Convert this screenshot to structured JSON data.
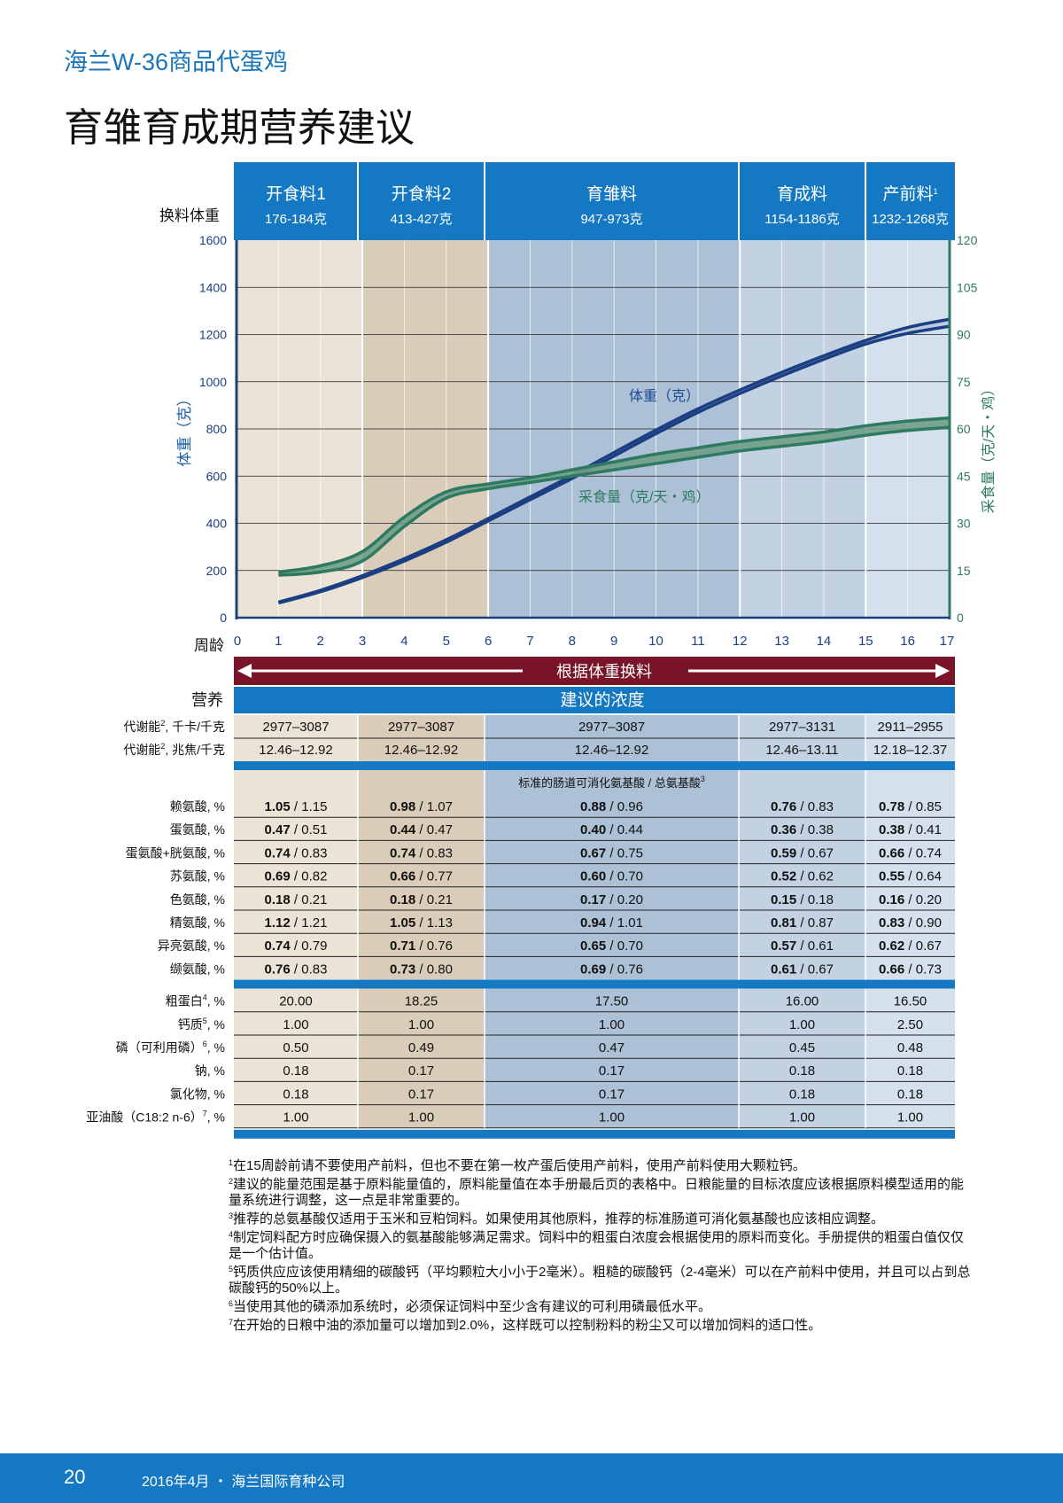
{
  "header": {
    "brand": "海兰W-36商品代蛋鸡",
    "title": "育雏育成期营养建议"
  },
  "phases": [
    {
      "name": "开食料1",
      "sup": "",
      "weight": "176-184克",
      "color": "#ebe3d6"
    },
    {
      "name": "开食料2",
      "sup": "",
      "weight": "413-427克",
      "color": "#d9ccb8"
    },
    {
      "name": "育雏料",
      "sup": "",
      "weight": "947-973克",
      "color": "#adc1d6"
    },
    {
      "name": "育成料",
      "sup": "",
      "weight": "1154-1186克",
      "color": "#c2d2e2"
    },
    {
      "name": "产前料",
      "sup": "1",
      "weight": "1232-1268克",
      "color": "#d4e0ec"
    }
  ],
  "labels": {
    "switch_weight": "换料体重",
    "age": "周龄",
    "nutrition": "营养",
    "banner": "根据体重换料",
    "concentration": "建议的浓度",
    "amino_header": "标准的肠道可消化氨基酸 / 总氨基酸",
    "amino_header_sup": "3"
  },
  "chart_data": {
    "type": "line",
    "xlabel": "周龄",
    "x_ticks": [
      0,
      1,
      2,
      3,
      4,
      5,
      6,
      7,
      8,
      9,
      10,
      11,
      12,
      13,
      14,
      15,
      16,
      17
    ],
    "y_left": {
      "label": "体重（克）",
      "range": [
        0,
        1600
      ],
      "ticks": [
        0,
        200,
        400,
        600,
        800,
        1000,
        1200,
        1400,
        1600
      ]
    },
    "y_right": {
      "label": "采食量（克/天・鸡）",
      "range": [
        0,
        120
      ],
      "ticks": [
        0,
        15,
        30,
        45,
        60,
        75,
        90,
        105,
        120
      ]
    },
    "phase_boundaries_weeks": [
      3,
      6,
      12,
      15
    ],
    "grid": true,
    "series": [
      {
        "name": "体重（克）",
        "axis": "left",
        "color": "#1b3f82",
        "x": [
          1,
          2,
          3,
          4,
          5,
          6,
          7,
          8,
          9,
          10,
          11,
          12,
          13,
          14,
          15,
          16,
          17
        ],
        "low": [
          62,
          110,
          170,
          240,
          320,
          410,
          500,
          590,
          685,
          780,
          870,
          950,
          1025,
          1095,
          1160,
          1205,
          1235
        ],
        "high": [
          66,
          116,
          178,
          250,
          330,
          420,
          512,
          603,
          700,
          795,
          885,
          965,
          1040,
          1110,
          1175,
          1230,
          1265
        ]
      },
      {
        "name": "采食量（克/天・鸡）",
        "axis": "right",
        "color": "#2e7a60",
        "x": [
          1,
          2,
          3,
          4,
          5,
          6,
          7,
          8,
          9,
          10,
          11,
          12,
          13,
          14,
          15,
          16,
          17
        ],
        "low": [
          13.5,
          14.5,
          18,
          29,
          38,
          41,
          43,
          45,
          47,
          49,
          51,
          53,
          54.5,
          56,
          58,
          59.5,
          60.5
        ],
        "high": [
          14.5,
          16.5,
          21,
          32,
          40,
          42.5,
          44.5,
          47,
          49.5,
          52,
          54,
          56,
          57.5,
          59,
          61,
          62.5,
          63.5
        ]
      }
    ]
  },
  "energy_rows": [
    {
      "label": "代谢能",
      "sup": "2",
      "unit": ", 千卡/千克",
      "values": [
        "2977–3087",
        "2977–3087",
        "2977–3087",
        "2977–3131",
        "2911–2955"
      ]
    },
    {
      "label": "代谢能",
      "sup": "2",
      "unit": ", 兆焦/千克",
      "values": [
        "12.46–12.92",
        "12.46–12.92",
        "12.46–12.92",
        "12.46–13.11",
        "12.18–12.37"
      ]
    }
  ],
  "amino_rows": [
    {
      "label": "赖氨酸",
      "sup": "",
      "unit": ", %",
      "values": [
        [
          "1.05",
          "1.15"
        ],
        [
          "0.98",
          "1.07"
        ],
        [
          "0.88",
          "0.96"
        ],
        [
          "0.76",
          "0.83"
        ],
        [
          "0.78",
          "0.85"
        ]
      ]
    },
    {
      "label": "蛋氨酸",
      "sup": "",
      "unit": ", %",
      "values": [
        [
          "0.47",
          "0.51"
        ],
        [
          "0.44",
          "0.47"
        ],
        [
          "0.40",
          "0.44"
        ],
        [
          "0.36",
          "0.38"
        ],
        [
          "0.38",
          "0.41"
        ]
      ]
    },
    {
      "label": "蛋氨酸+胱氨酸",
      "sup": "",
      "unit": ", %",
      "values": [
        [
          "0.74",
          "0.83"
        ],
        [
          "0.74",
          "0.83"
        ],
        [
          "0.67",
          "0.75"
        ],
        [
          "0.59",
          "0.67"
        ],
        [
          "0.66",
          "0.74"
        ]
      ]
    },
    {
      "label": "苏氨酸",
      "sup": "",
      "unit": ", %",
      "values": [
        [
          "0.69",
          "0.82"
        ],
        [
          "0.66",
          "0.77"
        ],
        [
          "0.60",
          "0.70"
        ],
        [
          "0.52",
          "0.62"
        ],
        [
          "0.55",
          "0.64"
        ]
      ]
    },
    {
      "label": "色氨酸",
      "sup": "",
      "unit": ", %",
      "values": [
        [
          "0.18",
          "0.21"
        ],
        [
          "0.18",
          "0.21"
        ],
        [
          "0.17",
          "0.20"
        ],
        [
          "0.15",
          "0.18"
        ],
        [
          "0.16",
          "0.20"
        ]
      ]
    },
    {
      "label": "精氨酸",
      "sup": "",
      "unit": ", %",
      "values": [
        [
          "1.12",
          "1.21"
        ],
        [
          "1.05",
          "1.13"
        ],
        [
          "0.94",
          "1.01"
        ],
        [
          "0.81",
          "0.87"
        ],
        [
          "0.83",
          "0.90"
        ]
      ]
    },
    {
      "label": "异亮氨酸",
      "sup": "",
      "unit": ", %",
      "values": [
        [
          "0.74",
          "0.79"
        ],
        [
          "0.71",
          "0.76"
        ],
        [
          "0.65",
          "0.70"
        ],
        [
          "0.57",
          "0.61"
        ],
        [
          "0.62",
          "0.67"
        ]
      ]
    },
    {
      "label": "缬氨酸",
      "sup": "",
      "unit": ", %",
      "values": [
        [
          "0.76",
          "0.83"
        ],
        [
          "0.73",
          "0.80"
        ],
        [
          "0.69",
          "0.76"
        ],
        [
          "0.61",
          "0.67"
        ],
        [
          "0.66",
          "0.73"
        ]
      ]
    }
  ],
  "other_rows": [
    {
      "label": "粗蛋白",
      "sup": "4",
      "unit": ", %",
      "values": [
        "20.00",
        "18.25",
        "17.50",
        "16.00",
        "16.50"
      ]
    },
    {
      "label": "钙质",
      "sup": "5",
      "unit": ", %",
      "values": [
        "1.00",
        "1.00",
        "1.00",
        "1.00",
        "2.50"
      ]
    },
    {
      "label": "磷（可利用磷）",
      "sup": "6",
      "unit": ", %",
      "values": [
        "0.50",
        "0.49",
        "0.47",
        "0.45",
        "0.48"
      ]
    },
    {
      "label": "钠",
      "sup": "",
      "unit": ", %",
      "values": [
        "0.18",
        "0.17",
        "0.17",
        "0.18",
        "0.18"
      ]
    },
    {
      "label": "氯化物",
      "sup": "",
      "unit": ", %",
      "values": [
        "0.18",
        "0.17",
        "0.17",
        "0.18",
        "0.18"
      ]
    },
    {
      "label": "亚油酸（C18:2 n-6）",
      "sup": "7",
      "unit": ", %",
      "values": [
        "1.00",
        "1.00",
        "1.00",
        "1.00",
        "1.00"
      ]
    }
  ],
  "footnotes": [
    {
      "num": "1",
      "text": "在15周龄前请不要使用产前料，但也不要在第一枚产蛋后使用产前料，使用产前料使用大颗粒钙。"
    },
    {
      "num": "2",
      "text": "建议的能量范围是基于原料能量值的，原料能量值在本手册最后页的表格中。日粮能量的目标浓度应该根据原料模型适用的能量系统进行调整，这一点是非常重要的。"
    },
    {
      "num": "3",
      "text": "推荐的总氨基酸仅适用于玉米和豆粕饲料。如果使用其他原料，推荐的标准肠道可消化氨基酸也应该相应调整。"
    },
    {
      "num": "4",
      "text": "制定饲料配方时应确保摄入的氨基酸能够满足需求。饲料中的粗蛋白浓度会根据使用的原料而变化。手册提供的粗蛋白值仅仅是一个估计值。"
    },
    {
      "num": "5",
      "text": "钙质供应应该使用精细的碳酸钙（平均颗粒大小小于2毫米）。粗糙的碳酸钙（2-4毫米）可以在产前料中使用，并且可以占到总碳酸钙的50%以上。"
    },
    {
      "num": "6",
      "text": "当使用其他的磷添加系统时，必须保证饲料中至少含有建议的可利用磷最低水平。"
    },
    {
      "num": "7",
      "text": "在开始的日粮中油的添加量可以增加到2.0%，这样既可以控制粉料的粉尘又可以增加饲料的适口性。"
    }
  ],
  "footer": {
    "page": "20",
    "info": "2016年4月 ・ 海兰国际育种公司"
  },
  "colors": {
    "brand_blue": "#1578c2",
    "banner_red": "#7a1428",
    "weight_line": "#1b3f82",
    "feed_line": "#2e7a60"
  }
}
